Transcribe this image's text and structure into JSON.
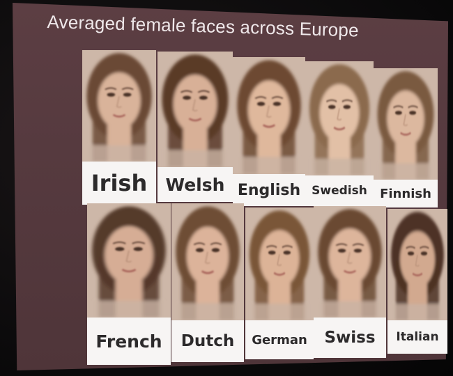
{
  "slide": {
    "title": "Averaged female faces across Europe"
  },
  "faces": [
    {
      "label": "Irish",
      "hair": "#6b4a35",
      "skin": "#d9b39a"
    },
    {
      "label": "Welsh",
      "hair": "#5a3b28",
      "skin": "#d8b097"
    },
    {
      "label": "English",
      "hair": "#6d4a32",
      "skin": "#dfb89c"
    },
    {
      "label": "Swedish",
      "hair": "#8b6a4e",
      "skin": "#e2c0a6"
    },
    {
      "label": "Finnish",
      "hair": "#7a5a40",
      "skin": "#dcb89f"
    },
    {
      "label": "French",
      "hair": "#553a2b",
      "skin": "#d6ad95"
    },
    {
      "label": "Dutch",
      "hair": "#6e4d35",
      "skin": "#dcb39a"
    },
    {
      "label": "German",
      "hair": "#7a5638",
      "skin": "#dcb397"
    },
    {
      "label": "Swiss",
      "hair": "#6a4a33",
      "skin": "#ddb59b"
    },
    {
      "label": "Italian",
      "hair": "#4e3325",
      "skin": "#d2a98f"
    }
  ]
}
